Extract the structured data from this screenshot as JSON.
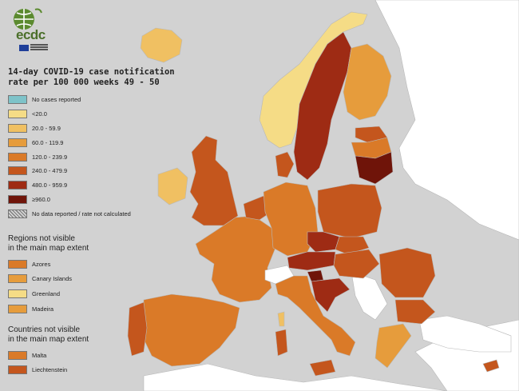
{
  "legend": {
    "title": "14-day COVID-19 case notification\nrate per 100 000 weeks 49 - 50",
    "items": [
      {
        "label": "No cases reported",
        "color": "#7ec3c9"
      },
      {
        "label": "<20.0",
        "color": "#f5dc86"
      },
      {
        "label": "20.0 - 59.9",
        "color": "#f0c062"
      },
      {
        "label": "60.0 - 119.9",
        "color": "#e69c3c"
      },
      {
        "label": "120.0 - 239.9",
        "color": "#da7a28"
      },
      {
        "label": "240.0 - 479.9",
        "color": "#c4561d"
      },
      {
        "label": "480.0 - 959.9",
        "color": "#9e2b14"
      },
      {
        "label": "≥960.0",
        "color": "#6f1409"
      },
      {
        "label": "No data reported / rate not calculated",
        "color": "hatch"
      }
    ]
  },
  "regions_section": {
    "title_line1": "Regions not visible",
    "title_line2": "in the main map extent",
    "items": [
      {
        "label": "Azores",
        "color": "#da7a28"
      },
      {
        "label": "Canary Islands",
        "color": "#e69c3c"
      },
      {
        "label": "Greenland",
        "color": "#f5dc86"
      },
      {
        "label": "Madeira",
        "color": "#e69c3c"
      }
    ]
  },
  "countries_section": {
    "title_line1": "Countries not visible",
    "title_line2": "in the main map extent",
    "items": [
      {
        "label": "Malta",
        "color": "#da7a28"
      },
      {
        "label": "Liechtenstein",
        "color": "#c4561d"
      }
    ]
  },
  "logo": {
    "text": "ecdc",
    "icon": "globe-icon"
  },
  "map_colors": {
    "sea": "#d2d2d2",
    "non_eu_land": "#ffffff",
    "border": "#b8b8b8"
  }
}
